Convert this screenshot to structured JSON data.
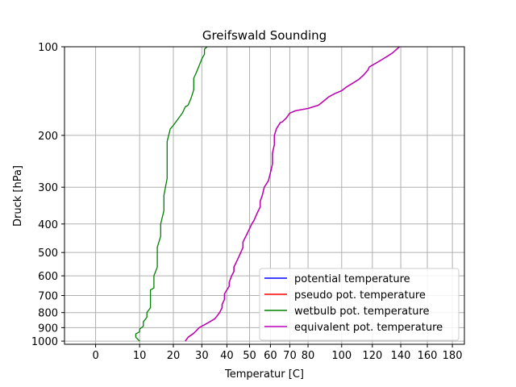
{
  "chart_data": {
    "type": "line",
    "title": "Greifswald Sounding",
    "xlabel": "Temperatur [C]",
    "ylabel": "Druck [hPa]",
    "x_scale": "sqrt",
    "y_scale": "log",
    "y_inverted": true,
    "xlim": [
      -5,
      190
    ],
    "ylim": [
      1025,
      100
    ],
    "x_ticks": [
      0,
      10,
      20,
      30,
      40,
      50,
      60,
      70,
      80,
      100,
      120,
      140,
      160,
      180
    ],
    "y_ticks": [
      100,
      200,
      300,
      400,
      500,
      600,
      700,
      800,
      900,
      1000
    ],
    "grid": true,
    "legend_position": "lower-right",
    "series": [
      {
        "name": "potential temperature",
        "color": "#0000ff",
        "points": [
          [
            24,
            1000
          ],
          [
            25,
            970
          ],
          [
            27,
            940
          ],
          [
            28,
            920
          ],
          [
            29,
            900
          ],
          [
            31,
            880
          ],
          [
            33,
            860
          ],
          [
            35,
            840
          ],
          [
            36,
            820
          ],
          [
            37,
            800
          ],
          [
            38,
            770
          ],
          [
            38,
            750
          ],
          [
            39,
            720
          ],
          [
            39,
            690
          ],
          [
            40,
            670
          ],
          [
            41,
            650
          ],
          [
            41,
            630
          ],
          [
            42,
            600
          ],
          [
            43,
            580
          ],
          [
            43,
            560
          ],
          [
            44,
            540
          ],
          [
            45,
            520
          ],
          [
            46,
            500
          ],
          [
            47,
            480
          ],
          [
            47,
            460
          ],
          [
            48,
            445
          ],
          [
            49,
            430
          ],
          [
            50,
            415
          ],
          [
            51,
            400
          ],
          [
            52,
            390
          ],
          [
            53,
            375
          ],
          [
            54,
            362
          ],
          [
            55,
            350
          ],
          [
            55,
            335
          ],
          [
            56,
            320
          ],
          [
            57,
            300
          ],
          [
            59,
            285
          ],
          [
            60,
            268
          ],
          [
            61,
            250
          ],
          [
            61,
            230
          ],
          [
            62,
            215
          ],
          [
            62,
            200
          ],
          [
            63,
            190
          ],
          [
            65,
            181
          ],
          [
            66,
            180
          ],
          [
            68,
            175
          ],
          [
            70,
            168
          ],
          [
            73,
            165
          ],
          [
            80,
            162
          ],
          [
            86,
            158
          ],
          [
            89,
            153
          ],
          [
            92,
            148
          ],
          [
            96,
            144
          ],
          [
            100,
            141
          ],
          [
            103,
            137
          ],
          [
            107,
            133
          ],
          [
            111,
            129
          ],
          [
            114,
            125
          ],
          [
            117,
            120
          ],
          [
            118,
            117
          ],
          [
            122,
            114
          ],
          [
            126,
            111
          ],
          [
            130,
            108
          ],
          [
            134,
            105
          ],
          [
            137,
            102
          ],
          [
            139,
            100
          ]
        ]
      },
      {
        "name": "pseudo pot. temperature",
        "color": "#ff0000",
        "points": [
          [
            24,
            1000
          ],
          [
            25,
            970
          ],
          [
            27,
            940
          ],
          [
            28,
            920
          ],
          [
            29,
            900
          ],
          [
            31,
            880
          ],
          [
            33,
            860
          ],
          [
            35,
            840
          ],
          [
            36,
            820
          ],
          [
            37,
            800
          ],
          [
            38,
            770
          ],
          [
            38,
            750
          ],
          [
            39,
            720
          ],
          [
            39,
            690
          ],
          [
            40,
            670
          ],
          [
            41,
            650
          ],
          [
            41,
            630
          ],
          [
            42,
            600
          ],
          [
            43,
            580
          ],
          [
            43,
            560
          ],
          [
            44,
            540
          ],
          [
            45,
            520
          ],
          [
            46,
            500
          ],
          [
            47,
            480
          ],
          [
            47,
            460
          ],
          [
            48,
            445
          ],
          [
            49,
            430
          ],
          [
            50,
            415
          ],
          [
            51,
            400
          ],
          [
            52,
            390
          ],
          [
            53,
            375
          ],
          [
            54,
            362
          ],
          [
            55,
            350
          ],
          [
            55,
            335
          ],
          [
            56,
            320
          ],
          [
            57,
            300
          ],
          [
            59,
            285
          ],
          [
            60,
            268
          ],
          [
            61,
            250
          ],
          [
            61,
            230
          ],
          [
            62,
            215
          ],
          [
            62,
            200
          ],
          [
            63,
            190
          ],
          [
            65,
            181
          ],
          [
            66,
            180
          ],
          [
            68,
            175
          ],
          [
            70,
            168
          ],
          [
            73,
            165
          ],
          [
            80,
            162
          ],
          [
            86,
            158
          ],
          [
            89,
            153
          ],
          [
            92,
            148
          ],
          [
            96,
            144
          ],
          [
            100,
            141
          ],
          [
            103,
            137
          ],
          [
            107,
            133
          ],
          [
            111,
            129
          ],
          [
            114,
            125
          ],
          [
            117,
            120
          ],
          [
            118,
            117
          ],
          [
            122,
            114
          ],
          [
            126,
            111
          ],
          [
            130,
            108
          ],
          [
            134,
            105
          ],
          [
            137,
            102
          ],
          [
            139,
            100
          ]
        ]
      },
      {
        "name": "wetbulb pot. temperature",
        "color": "#008000",
        "points": [
          [
            10,
            1000
          ],
          [
            9,
            970
          ],
          [
            9,
            945
          ],
          [
            10,
            930
          ],
          [
            10,
            910
          ],
          [
            11,
            890
          ],
          [
            11,
            860
          ],
          [
            12,
            830
          ],
          [
            12,
            800
          ],
          [
            13,
            770
          ],
          [
            13,
            740
          ],
          [
            13,
            700
          ],
          [
            13,
            670
          ],
          [
            14,
            660
          ],
          [
            14,
            640
          ],
          [
            14,
            600
          ],
          [
            15,
            560
          ],
          [
            15,
            520
          ],
          [
            15,
            480
          ],
          [
            16,
            440
          ],
          [
            16,
            400
          ],
          [
            17,
            360
          ],
          [
            17,
            320
          ],
          [
            18,
            280
          ],
          [
            18,
            240
          ],
          [
            18,
            210
          ],
          [
            19,
            190
          ],
          [
            20,
            185
          ],
          [
            23,
            168
          ],
          [
            24,
            160
          ],
          [
            25,
            158
          ],
          [
            26,
            150
          ],
          [
            27,
            140
          ],
          [
            27,
            128
          ],
          [
            28,
            122
          ],
          [
            29,
            116
          ],
          [
            30,
            110
          ],
          [
            31,
            106
          ],
          [
            31,
            102
          ],
          [
            32,
            100
          ]
        ]
      },
      {
        "name": "equivalent pot. temperature",
        "color": "#bf00bf",
        "points": [
          [
            24,
            1000
          ],
          [
            25,
            970
          ],
          [
            27,
            940
          ],
          [
            28,
            920
          ],
          [
            29,
            900
          ],
          [
            31,
            880
          ],
          [
            33,
            860
          ],
          [
            35,
            840
          ],
          [
            36,
            820
          ],
          [
            37,
            800
          ],
          [
            38,
            770
          ],
          [
            38,
            750
          ],
          [
            39,
            720
          ],
          [
            39,
            690
          ],
          [
            40,
            670
          ],
          [
            41,
            650
          ],
          [
            41,
            630
          ],
          [
            42,
            600
          ],
          [
            43,
            580
          ],
          [
            43,
            560
          ],
          [
            44,
            540
          ],
          [
            45,
            520
          ],
          [
            46,
            500
          ],
          [
            47,
            480
          ],
          [
            47,
            460
          ],
          [
            48,
            445
          ],
          [
            49,
            430
          ],
          [
            50,
            415
          ],
          [
            51,
            400
          ],
          [
            52,
            390
          ],
          [
            53,
            375
          ],
          [
            54,
            362
          ],
          [
            55,
            350
          ],
          [
            55,
            335
          ],
          [
            56,
            320
          ],
          [
            57,
            300
          ],
          [
            59,
            285
          ],
          [
            60,
            268
          ],
          [
            61,
            250
          ],
          [
            61,
            230
          ],
          [
            62,
            215
          ],
          [
            62,
            200
          ],
          [
            63,
            190
          ],
          [
            65,
            181
          ],
          [
            66,
            180
          ],
          [
            68,
            175
          ],
          [
            70,
            168
          ],
          [
            73,
            165
          ],
          [
            80,
            162
          ],
          [
            86,
            158
          ],
          [
            89,
            153
          ],
          [
            92,
            148
          ],
          [
            96,
            144
          ],
          [
            100,
            141
          ],
          [
            103,
            137
          ],
          [
            107,
            133
          ],
          [
            111,
            129
          ],
          [
            114,
            125
          ],
          [
            117,
            120
          ],
          [
            118,
            117
          ],
          [
            122,
            114
          ],
          [
            126,
            111
          ],
          [
            130,
            108
          ],
          [
            134,
            105
          ],
          [
            137,
            102
          ],
          [
            139,
            100
          ]
        ]
      }
    ]
  }
}
